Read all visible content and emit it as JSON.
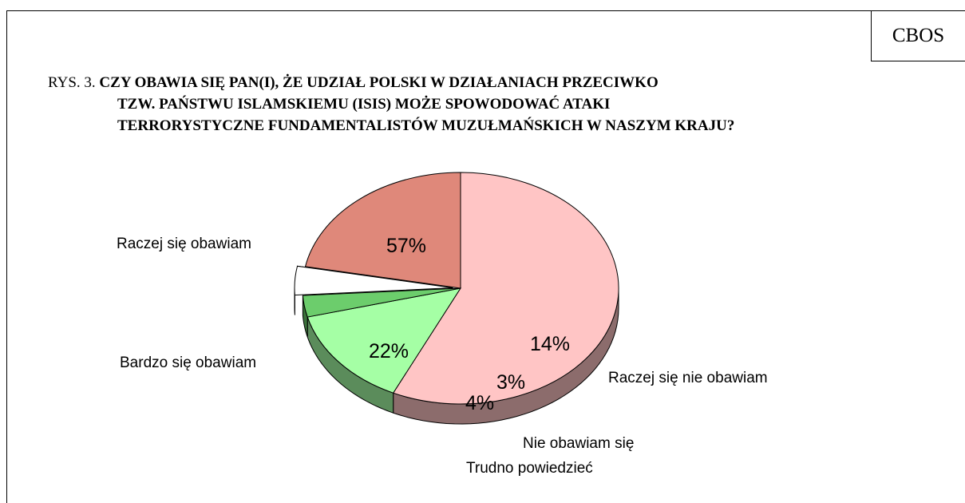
{
  "brand": "CBOS",
  "title": {
    "prefix": "RYS. 3.",
    "line1": "CZY OBAWIA SIĘ PAN(I), ŻE UDZIAŁ POLSKI W DZIAŁANIACH PRZECIWKO",
    "line2": "TZW. PAŃSTWU ISLAMSKIEMU (ISIS) MOŻE SPOWODOWAĆ ATAKI",
    "line3": "TERRORYSTYCZNE FUNDAMENTALISTÓW MUZUŁMAŃSKICH W NASZYM KRAJU?"
  },
  "chart_data": {
    "type": "pie",
    "slices": [
      {
        "label": "Raczej się obawiam",
        "value": 57,
        "value_label": "57%",
        "color": "#ffc5c5"
      },
      {
        "label": "Raczej się nie obawiam",
        "value": 14,
        "value_label": "14%",
        "color": "#a5ffa5"
      },
      {
        "label": "Nie obawiam się",
        "value": 3,
        "value_label": "3%",
        "color": "#6ccd6c"
      },
      {
        "label": "Trudno powiedzieć",
        "value": 4,
        "value_label": "4%",
        "color": "#ffffff"
      },
      {
        "label": "Bardzo się obawiam",
        "value": 22,
        "value_label": "22%",
        "color": "#df887a"
      }
    ]
  }
}
